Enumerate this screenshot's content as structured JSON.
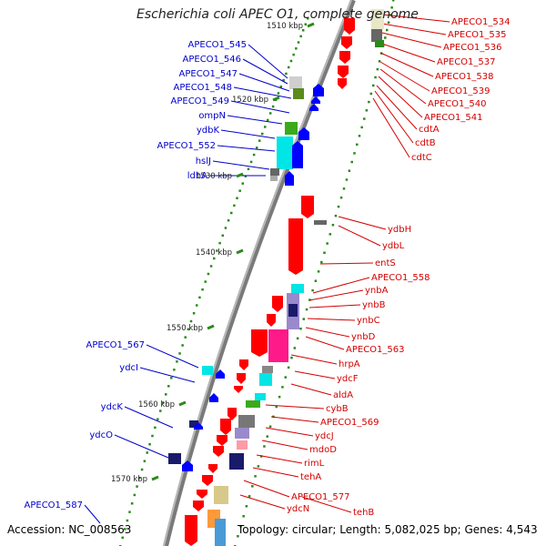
{
  "title": "Escherichia coli APEC O1, complete genome",
  "footer": {
    "accession": "Accession: NC_008563",
    "topology": "Topology: circular; Length: 5,082,025 bp; Genes: 4,543"
  },
  "colors": {
    "forward_gene": "#ff0000",
    "reverse_gene": "#0000ff",
    "backbone": "#777777",
    "tick": "#2b8a1a",
    "forward_label": "#d40000",
    "reverse_label": "#0000cc"
  },
  "scale_labels": [
    "1510 kbp",
    "1520 kbp",
    "1530 kbp",
    "1540 kbp",
    "1550 kbp",
    "1560 kbp",
    "1570 kbp"
  ],
  "reverse_labels": [
    "APECO1_545",
    "APECO1_546",
    "APECO1_547",
    "APECO1_548",
    "APECO1_549",
    "ompN",
    "ydbK",
    "APECO1_552",
    "hslJ",
    "ldhA",
    "APECO1_567",
    "ydcI",
    "ydcK",
    "ydcO",
    "APECO1_587"
  ],
  "forward_labels": [
    "APECO1_534",
    "APECO1_535",
    "APECO1_536",
    "APECO1_537",
    "APECO1_538",
    "APECO1_539",
    "APECO1_540",
    "APECO1_541",
    "cdtA",
    "cdtB",
    "cdtC",
    "ydbH",
    "ydbL",
    "entS",
    "APECO1_558",
    "ynbA",
    "ynbB",
    "ynbC",
    "ynbD",
    "APECO1_563",
    "hrpA",
    "ydcF",
    "aldA",
    "cybB",
    "APECO1_569",
    "ydcJ",
    "mdoD",
    "rimL",
    "tehA",
    "APECO1_577",
    "ydcN",
    "tehB"
  ]
}
